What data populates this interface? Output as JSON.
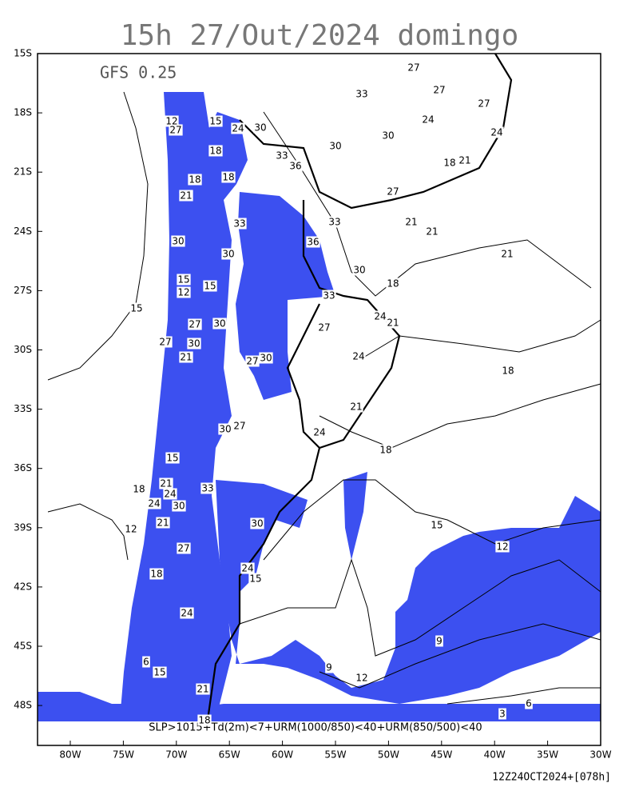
{
  "header": {
    "title": "15h 27/Out/2024 domingo",
    "model": "GFS 0.25"
  },
  "lat_labels": [
    "15S",
    "18S",
    "21S",
    "24S",
    "27S",
    "30S",
    "33S",
    "36S",
    "39S",
    "42S",
    "45S",
    "48S"
  ],
  "lon_labels": [
    "80W",
    "75W",
    "70W",
    "65W",
    "60W",
    "55W",
    "50W",
    "45W",
    "40W",
    "35W",
    "30W"
  ],
  "contour_labels": [
    "27",
    "27",
    "33",
    "27",
    "24",
    "24",
    "30",
    "30",
    "18",
    "21",
    "33",
    "36",
    "27",
    "21",
    "21",
    "33",
    "36",
    "21",
    "30",
    "18",
    "33",
    "27",
    "24",
    "21",
    "24",
    "18",
    "21",
    "24",
    "18",
    "15",
    "12",
    "9",
    "9",
    "12",
    "6",
    "3",
    "12",
    "27",
    "15",
    "24",
    "30",
    "18",
    "18",
    "18",
    "21",
    "33",
    "30",
    "30",
    "15",
    "12",
    "15",
    "27",
    "30",
    "27",
    "30",
    "21",
    "27",
    "30",
    "27",
    "30",
    "15",
    "33",
    "21",
    "24",
    "24",
    "30",
    "21",
    "30",
    "27",
    "24",
    "15",
    "18",
    "24",
    "6",
    "15",
    "21",
    "18",
    "15",
    "12",
    "18"
  ],
  "caption": "SLP>1015+Td(2m)<7+URM(1000/850)<40+URM(850/500)<40",
  "footer": "12Z24OCT2024+[078h]"
}
